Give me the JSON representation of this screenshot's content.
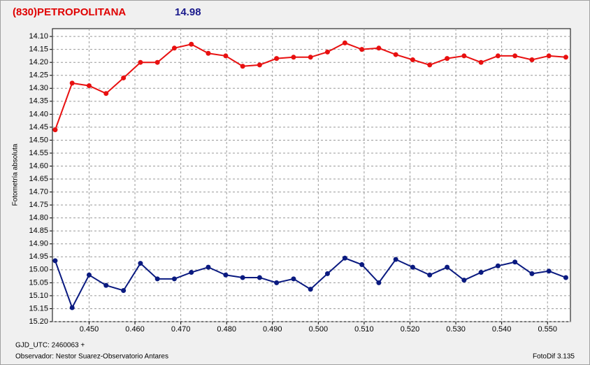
{
  "chart_data": {
    "type": "line",
    "title": "(830)PETROPOLITANA",
    "subtitle": "14.98",
    "y_label": "Fotometría absoluta",
    "footer_left_1": "GJD_UTC: 2460063 +",
    "footer_left_2": "Observador: Nestor Suarez-Observatorio Antares",
    "footer_right": "FotoDif 3.135",
    "y_inverted": true,
    "grid": true,
    "xlim": [
      0.442,
      0.555
    ],
    "ylim": [
      14.07,
      15.2
    ],
    "xticks": [
      {
        "value": 0.45,
        "label": "0.450"
      },
      {
        "value": 0.46,
        "label": "0.460"
      },
      {
        "value": 0.47,
        "label": "0.470"
      },
      {
        "value": 0.48,
        "label": "0.480"
      },
      {
        "value": 0.49,
        "label": "0.490"
      },
      {
        "value": 0.5,
        "label": "0.500"
      },
      {
        "value": 0.51,
        "label": "0.510"
      },
      {
        "value": 0.52,
        "label": "0.520"
      },
      {
        "value": 0.53,
        "label": "0.530"
      },
      {
        "value": 0.54,
        "label": "0.540"
      },
      {
        "value": 0.55,
        "label": "0.550"
      }
    ],
    "yticks": [
      {
        "value": 14.1,
        "label": "14.10"
      },
      14.15,
      {
        "value": 14.2,
        "label": "14.20"
      },
      14.25,
      {
        "value": 14.3,
        "label": "14.30"
      },
      14.35,
      {
        "value": 14.4,
        "label": "14.40"
      },
      14.45,
      {
        "value": 14.5,
        "label": "14.50"
      },
      14.55,
      {
        "value": 14.6,
        "label": "14.60"
      },
      14.65,
      {
        "value": 14.7,
        "label": "14.70"
      },
      14.75,
      {
        "value": 14.8,
        "label": "14.80"
      },
      14.85,
      {
        "value": 14.9,
        "label": "14.90"
      },
      14.95,
      {
        "value": 15.0,
        "label": "15.00"
      },
      15.05,
      {
        "value": 15.1,
        "label": "15.10"
      },
      15.15,
      {
        "value": 15.2,
        "label": "15.20"
      }
    ],
    "x": [
      0.4426,
      0.4463,
      0.45,
      0.4537,
      0.4575,
      0.4612,
      0.4649,
      0.4686,
      0.4723,
      0.476,
      0.4798,
      0.4835,
      0.4872,
      0.4909,
      0.4946,
      0.4983,
      0.502,
      0.5058,
      0.5095,
      0.5132,
      0.5169,
      0.5206,
      0.5243,
      0.5281,
      0.5318,
      0.5355,
      0.5392,
      0.5429,
      0.5466,
      0.5503,
      0.554
    ],
    "series": [
      {
        "color": "#e81010",
        "values": [
          14.46,
          14.28,
          14.29,
          14.32,
          14.26,
          14.2,
          14.2,
          14.145,
          14.13,
          14.165,
          14.175,
          14.215,
          14.21,
          14.185,
          14.18,
          14.18,
          14.16,
          14.125,
          14.15,
          14.145,
          14.17,
          14.19,
          14.21,
          14.185,
          14.175,
          14.2,
          14.175,
          14.175,
          14.19,
          14.175,
          14.18
        ]
      },
      {
        "color": "#0a1a80",
        "values": [
          14.965,
          15.146,
          15.02,
          15.06,
          15.08,
          14.975,
          15.035,
          15.035,
          15.01,
          14.99,
          15.02,
          15.03,
          15.03,
          15.05,
          15.035,
          15.075,
          15.015,
          14.955,
          14.98,
          15.05,
          14.96,
          14.99,
          15.02,
          14.99,
          15.04,
          15.01,
          14.985,
          14.97,
          15.015,
          15.005,
          15.03
        ]
      }
    ]
  }
}
